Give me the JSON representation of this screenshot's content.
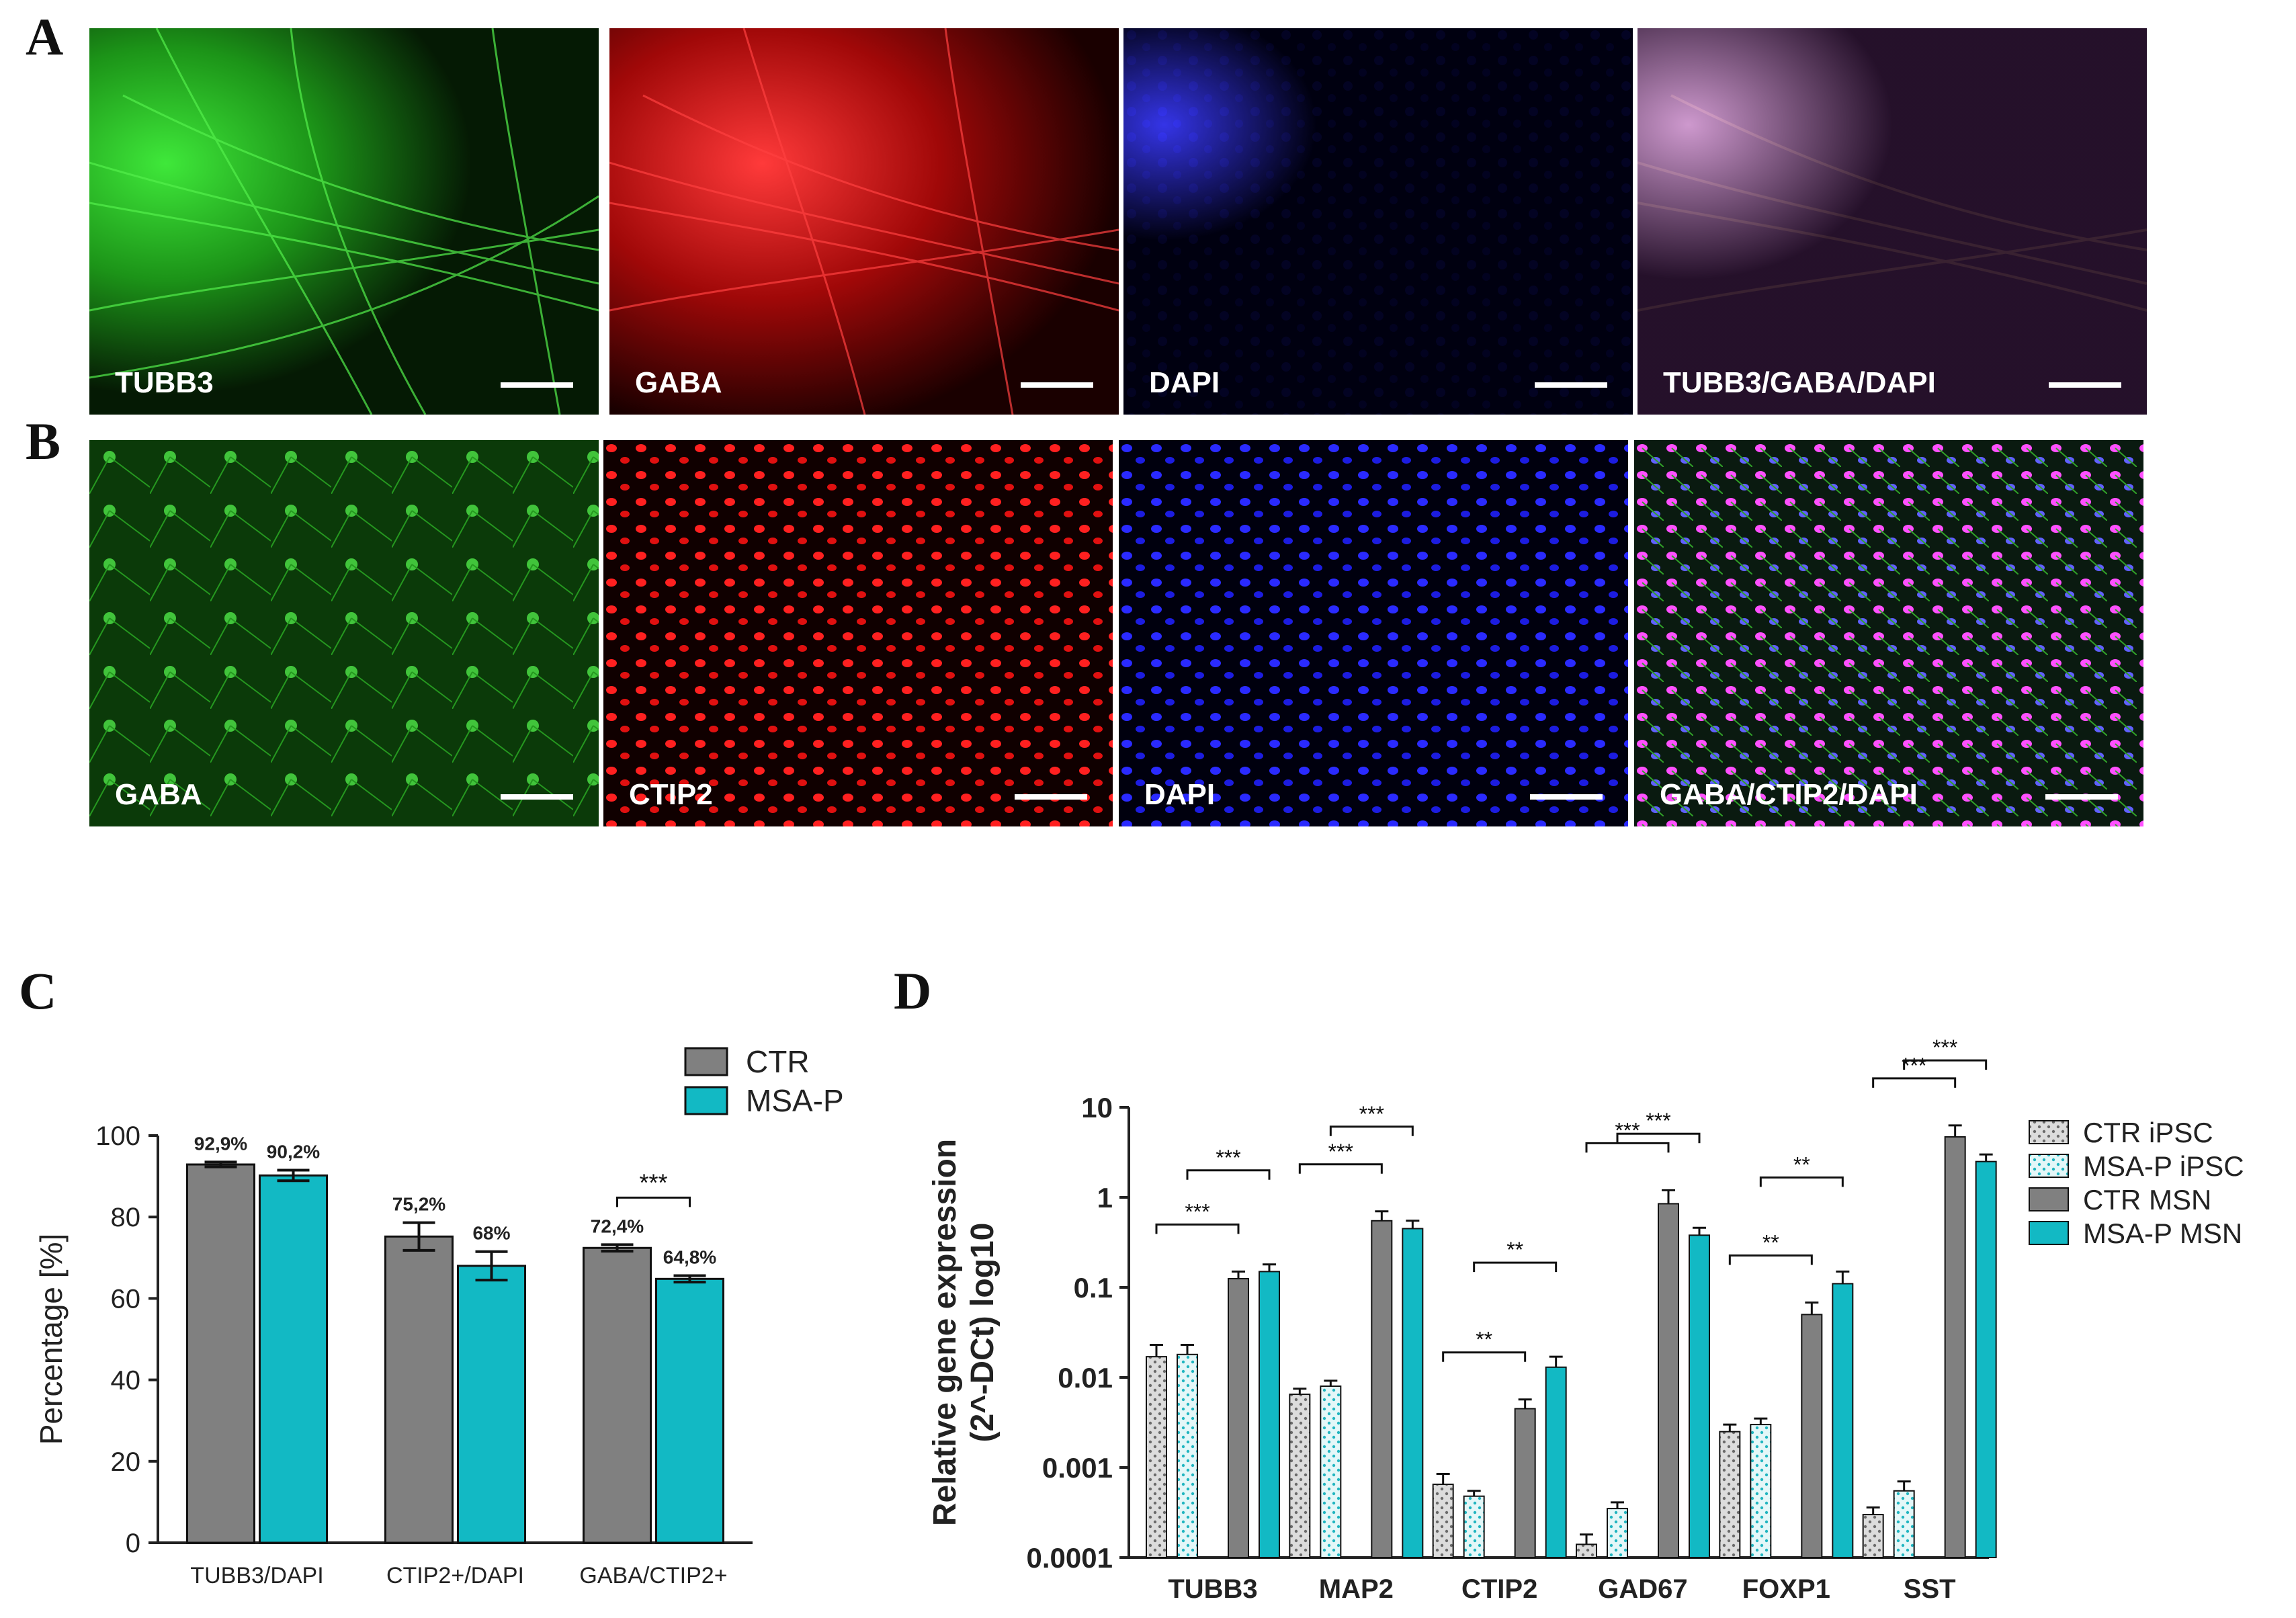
{
  "panels": {
    "a_letter": "A",
    "b_letter": "B",
    "c_letter": "C",
    "d_letter": "D",
    "row_a": [
      {
        "label": "TUBB3",
        "color": "#27d61f"
      },
      {
        "label": "GABA",
        "color": "#ff1414"
      },
      {
        "label": "DAPI",
        "color": "#1a1aff"
      },
      {
        "label": "TUBB3/GABA/DAPI",
        "color": "#d060c0"
      }
    ],
    "row_b": [
      {
        "label": "GABA",
        "color": "#27d61f"
      },
      {
        "label": "CTIP2",
        "color": "#ff1414"
      },
      {
        "label": "DAPI",
        "color": "#1a1aff"
      },
      {
        "label": "GABA/CTIP2/DAPI",
        "color": "#d060c0"
      }
    ]
  },
  "chart_data": [
    {
      "type": "bar",
      "panel": "C",
      "title": "",
      "xlabel": "",
      "ylabel": "Percentage [%]",
      "ylim": [
        0,
        100
      ],
      "yticks": [
        "0",
        "20",
        "40",
        "60",
        "80",
        "100"
      ],
      "categories": [
        "TUBB3/DAPI",
        "CTIP2+/DAPI",
        "GABA/CTIP2+"
      ],
      "series": [
        {
          "name": "CTR",
          "color": "#808080",
          "values": [
            92.9,
            75.2,
            72.4
          ],
          "errors": [
            0.6,
            3.4,
            0.8
          ],
          "labels": [
            "92,9%",
            "75,2%",
            "72,4%"
          ]
        },
        {
          "name": "MSA-P",
          "color": "#12b9c4",
          "values": [
            90.2,
            68,
            64.8
          ],
          "errors": [
            1.3,
            3.5,
            0.8
          ],
          "labels": [
            "90,2%",
            "68%",
            "64,8%"
          ]
        }
      ],
      "significance": [
        {
          "category": "GABA/CTIP2+",
          "label": "***"
        }
      ],
      "legend": "top-right"
    },
    {
      "type": "bar",
      "panel": "D",
      "title": "",
      "xlabel": "",
      "ylabel_line1": "Relative gene expression",
      "ylabel_line2": "(2^-DCt) log10",
      "yscale": "log",
      "ylim": [
        0.0001,
        10
      ],
      "yticks": [
        "0.0001",
        "0.001",
        "0.01",
        "0.1",
        "1",
        "10"
      ],
      "categories": [
        "TUBB3",
        "MAP2",
        "CTIP2",
        "GAD67",
        "FOXP1",
        "SST"
      ],
      "series": [
        {
          "name": "CTR iPSC",
          "color": "#d3d3d3",
          "pattern": "dots-gray",
          "values": [
            0.017,
            0.0065,
            0.00065,
            0.00014,
            0.0025,
            0.0003
          ],
          "errors": [
            0.006,
            0.001,
            0.0002,
            4e-05,
            0.0005,
            6e-05
          ]
        },
        {
          "name": "MSA-P iPSC",
          "color": "#d9f4f6",
          "pattern": "dots-teal",
          "values": [
            0.018,
            0.008,
            0.00048,
            0.00035,
            0.003,
            0.00055
          ],
          "errors": [
            0.005,
            0.0012,
            7e-05,
            6e-05,
            0.0005,
            0.00015
          ]
        },
        {
          "name": "CTR MSN",
          "color": "#808080",
          "values": [
            0.125,
            0.55,
            0.0045,
            0.85,
            0.05,
            4.7
          ],
          "errors": [
            0.025,
            0.15,
            0.0012,
            0.35,
            0.018,
            1.6
          ]
        },
        {
          "name": "MSA-P MSN",
          "color": "#12b9c4",
          "values": [
            0.15,
            0.45,
            0.013,
            0.38,
            0.11,
            2.5
          ],
          "errors": [
            0.03,
            0.1,
            0.004,
            0.08,
            0.04,
            0.5
          ]
        }
      ],
      "significance": [
        {
          "category": "TUBB3",
          "pair": "CTR",
          "label": "***"
        },
        {
          "category": "TUBB3",
          "pair": "MSA-P",
          "label": "***"
        },
        {
          "category": "MAP2",
          "pair": "CTR",
          "label": "***"
        },
        {
          "category": "MAP2",
          "pair": "MSA-P",
          "label": "***"
        },
        {
          "category": "CTIP2",
          "pair": "CTR",
          "label": "**"
        },
        {
          "category": "CTIP2",
          "pair": "MSA-P",
          "label": "**"
        },
        {
          "category": "GAD67",
          "pair": "CTR",
          "label": "***"
        },
        {
          "category": "GAD67",
          "pair": "MSA-P",
          "label": "***"
        },
        {
          "category": "FOXP1",
          "pair": "CTR",
          "label": "**"
        },
        {
          "category": "FOXP1",
          "pair": "MSA-P",
          "label": "**"
        },
        {
          "category": "SST",
          "pair": "CTR",
          "label": "***"
        },
        {
          "category": "SST",
          "pair": "MSA-P",
          "label": "***"
        }
      ],
      "legend": "right"
    }
  ]
}
